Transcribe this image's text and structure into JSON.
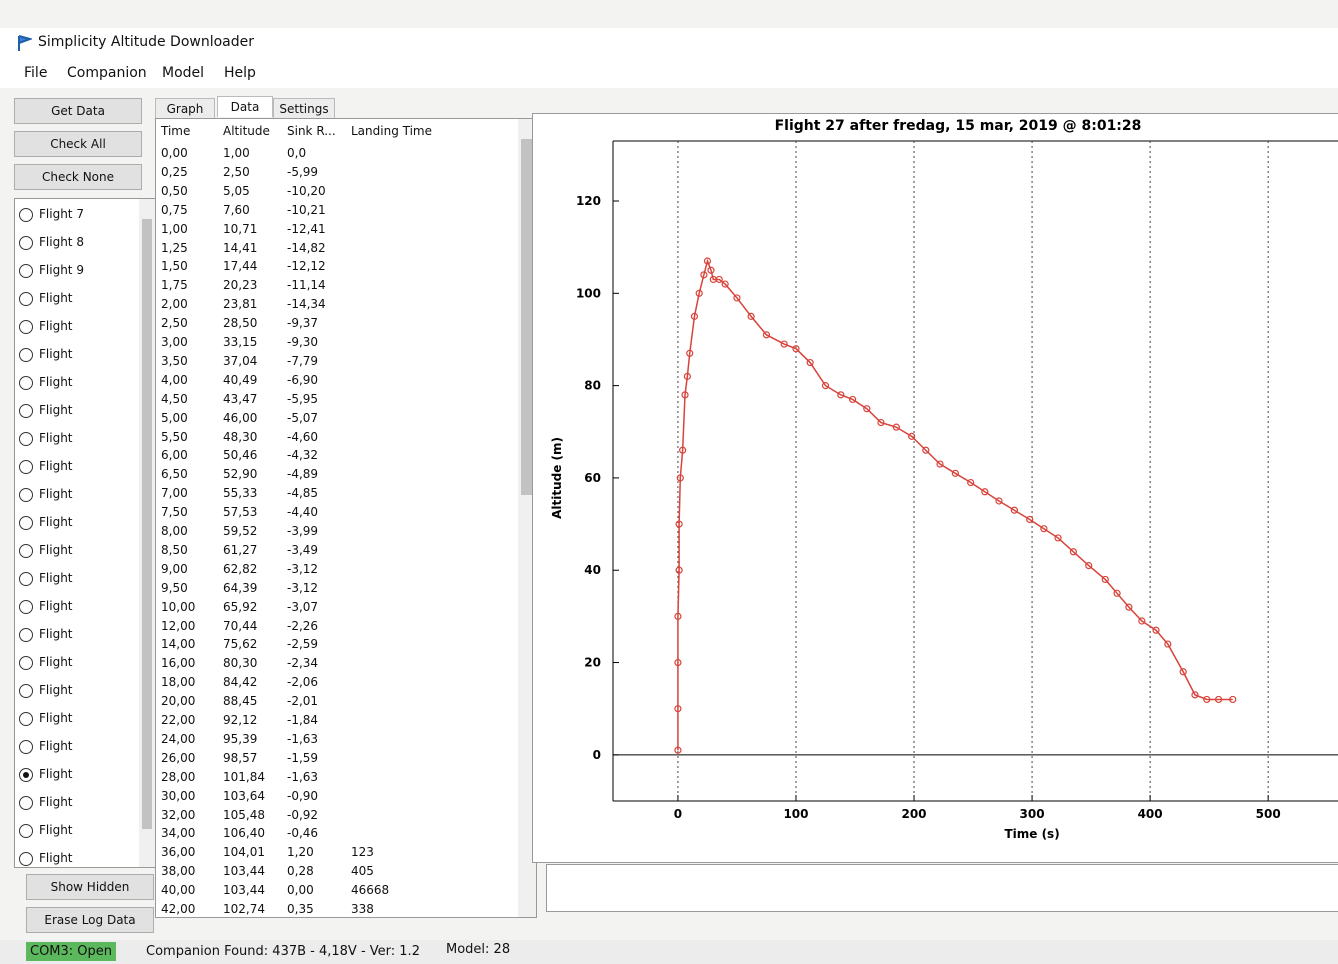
{
  "window": {
    "title": "Simplicity Altitude Downloader"
  },
  "menu": [
    "File",
    "Companion",
    "Model",
    "Help"
  ],
  "buttons": {
    "get_data": "Get Data",
    "check_all": "Check All",
    "check_none": "Check None",
    "show_hidden": "Show Hidden",
    "erase_log": "Erase Log Data"
  },
  "flights": {
    "items": [
      "Flight 7",
      "Flight 8",
      "Flight 9",
      "Flight",
      "Flight",
      "Flight",
      "Flight",
      "Flight",
      "Flight",
      "Flight",
      "Flight",
      "Flight",
      "Flight",
      "Flight",
      "Flight",
      "Flight",
      "Flight",
      "Flight",
      "Flight",
      "Flight",
      "Flight",
      "Flight",
      "Flight",
      "Flight"
    ],
    "selected": 20
  },
  "tabs": {
    "items": [
      "Graph",
      "Data",
      "Settings"
    ],
    "active": 1
  },
  "table": {
    "columns": [
      "Time",
      "Altitude",
      "Sink R...",
      "Landing Time"
    ],
    "rows": [
      [
        "0,00",
        "1,00",
        "0,0"
      ],
      [
        "0,25",
        "2,50",
        "-5,99"
      ],
      [
        "0,50",
        "5,05",
        "-10,20"
      ],
      [
        "0,75",
        "7,60",
        "-10,21"
      ],
      [
        "1,00",
        "10,71",
        "-12,41"
      ],
      [
        "1,25",
        "14,41",
        "-14,82"
      ],
      [
        "1,50",
        "17,44",
        "-12,12"
      ],
      [
        "1,75",
        "20,23",
        "-11,14"
      ],
      [
        "2,00",
        "23,81",
        "-14,34"
      ],
      [
        "2,50",
        "28,50",
        "-9,37"
      ],
      [
        "3,00",
        "33,15",
        "-9,30"
      ],
      [
        "3,50",
        "37,04",
        "-7,79"
      ],
      [
        "4,00",
        "40,49",
        "-6,90"
      ],
      [
        "4,50",
        "43,47",
        "-5,95"
      ],
      [
        "5,00",
        "46,00",
        "-5,07"
      ],
      [
        "5,50",
        "48,30",
        "-4,60"
      ],
      [
        "6,00",
        "50,46",
        "-4,32"
      ],
      [
        "6,50",
        "52,90",
        "-4,89"
      ],
      [
        "7,00",
        "55,33",
        "-4,85"
      ],
      [
        "7,50",
        "57,53",
        "-4,40"
      ],
      [
        "8,00",
        "59,52",
        "-3,99"
      ],
      [
        "8,50",
        "61,27",
        "-3,49"
      ],
      [
        "9,00",
        "62,82",
        "-3,12"
      ],
      [
        "9,50",
        "64,39",
        "-3,12"
      ],
      [
        "10,00",
        "65,92",
        "-3,07"
      ],
      [
        "12,00",
        "70,44",
        "-2,26"
      ],
      [
        "14,00",
        "75,62",
        "-2,59"
      ],
      [
        "16,00",
        "80,30",
        "-2,34"
      ],
      [
        "18,00",
        "84,42",
        "-2,06"
      ],
      [
        "20,00",
        "88,45",
        "-2,01"
      ],
      [
        "22,00",
        "92,12",
        "-1,84"
      ],
      [
        "24,00",
        "95,39",
        "-1,63"
      ],
      [
        "26,00",
        "98,57",
        "-1,59"
      ],
      [
        "28,00",
        "101,84",
        "-1,63"
      ],
      [
        "30,00",
        "103,64",
        "-0,90"
      ],
      [
        "32,00",
        "105,48",
        "-0,92"
      ],
      [
        "34,00",
        "106,40",
        "-0,46"
      ],
      [
        "36,00",
        "104,01",
        "1,20",
        "123"
      ],
      [
        "38,00",
        "103,44",
        "0,28",
        "405"
      ],
      [
        "40,00",
        "103,44",
        "0,00",
        "46668"
      ],
      [
        "42,00",
        "102,74",
        "0,35",
        "338"
      ]
    ]
  },
  "chart_data": {
    "type": "line",
    "title": "Flight 27 after fredag, 15 mar, 2019 @ 8:01:28",
    "x_label": "Time (s)",
    "y_label": "Altitude (m)",
    "color": "#d8433a",
    "x": [
      0,
      0,
      0,
      0,
      1,
      1,
      2,
      4,
      6,
      8,
      10,
      14,
      18,
      22,
      25,
      28,
      30,
      35,
      40,
      50,
      62,
      75,
      90,
      100,
      112,
      125,
      138,
      148,
      160,
      172,
      185,
      198,
      210,
      222,
      235,
      248,
      260,
      272,
      285,
      298,
      310,
      322,
      335,
      348,
      362,
      372,
      382,
      393,
      405,
      415,
      428,
      438,
      448,
      458,
      470
    ],
    "values": [
      1,
      10,
      20,
      30,
      40,
      50,
      60,
      66,
      78,
      82,
      87,
      95,
      100,
      104,
      107,
      105,
      103,
      103,
      102,
      99,
      95,
      91,
      89,
      88,
      85,
      80,
      78,
      77,
      75,
      72,
      71,
      69,
      66,
      63,
      61,
      59,
      57,
      55,
      53,
      51,
      49,
      47,
      44,
      41,
      38,
      35,
      32,
      29,
      27,
      24,
      18,
      13,
      12,
      12,
      12
    ],
    "xlim": [
      -55,
      560
    ],
    "ylim": [
      -10,
      133
    ],
    "xticks": [
      0,
      100,
      200,
      300,
      400,
      500
    ],
    "yticks": [
      0,
      20,
      40,
      60,
      80,
      100,
      120
    ],
    "grid": true
  },
  "status": {
    "port": "COM3: Open",
    "companion": "Companion Found: 437B - 4,18V - Ver: 1.2",
    "model": "Model: 28"
  }
}
